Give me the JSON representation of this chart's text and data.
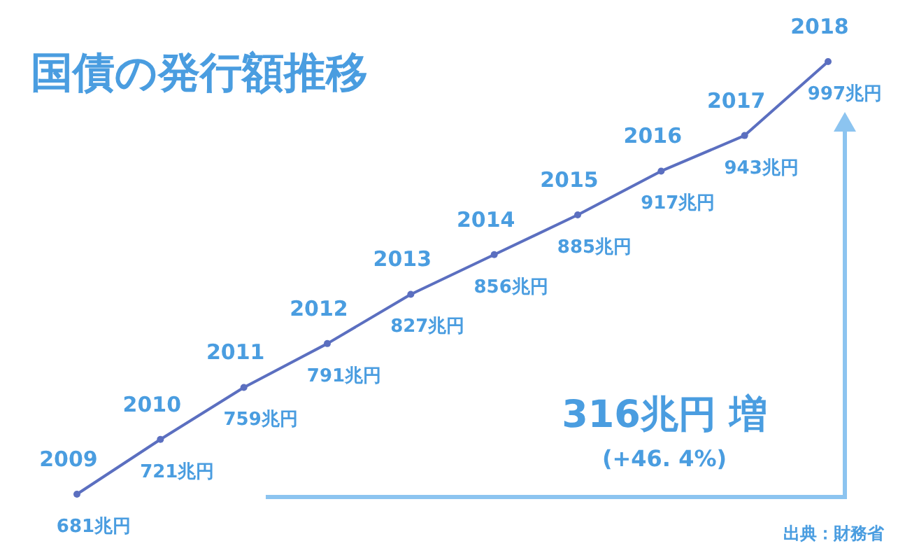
{
  "chart_data": {
    "type": "line",
    "title": "国債の発行額推移",
    "categories": [
      "2009",
      "2010",
      "2011",
      "2012",
      "2013",
      "2014",
      "2015",
      "2016",
      "2017",
      "2018"
    ],
    "series": [
      {
        "color": "#5b6fc0",
        "values": [
          681,
          721,
          759,
          791,
          827,
          856,
          885,
          917,
          943,
          997
        ],
        "value_labels": [
          "681兆円",
          "721兆円",
          "759兆円",
          "791兆円",
          "827兆円",
          "856兆円",
          "885兆円",
          "917兆円",
          "943兆円",
          "997兆円"
        ]
      }
    ],
    "marker": "circle",
    "annotations": [
      "316兆円 増",
      "(+46. 4%)",
      "出典：財務省"
    ]
  }
}
